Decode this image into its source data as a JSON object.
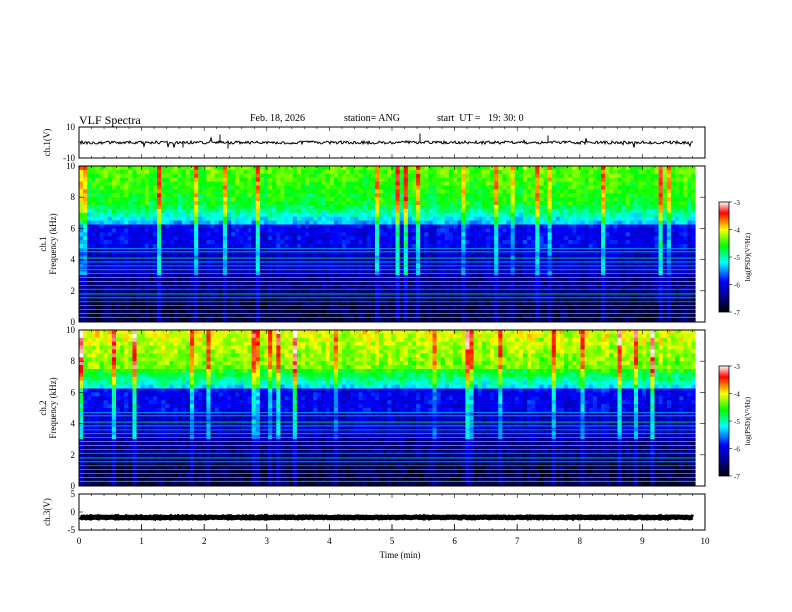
{
  "header": {
    "title": "VLF Spectra",
    "date": "Feb. 18, 2026",
    "station": "station= ANG",
    "start": "start  UT =   19: 30: 0"
  },
  "chart_data": [
    {
      "type": "line",
      "panel": "ch1-waveform",
      "ylabel": "ch.1(V)",
      "ylim": [
        -10,
        10
      ],
      "ytick_labels": [
        "10",
        "-10"
      ],
      "baseline": 0,
      "xlim": [
        0,
        10
      ]
    },
    {
      "type": "heatmap",
      "panel": "ch1-spectrogram",
      "ylabel_line1": "ch.1",
      "ylabel_line2": "Frequency (kHz)",
      "ylim": [
        0,
        10
      ],
      "yticks": [
        0,
        2,
        4,
        6,
        8,
        10
      ],
      "xlim": [
        0,
        9.85
      ],
      "colorbar": {
        "label": "log(PSD)(V²/Hz)",
        "range": [
          -7,
          -3
        ],
        "ticks": [
          "-3",
          "-4",
          "-5",
          "-6",
          "-7"
        ]
      },
      "tone_lines_khz": [
        0.3,
        0.55,
        0.8,
        1.05,
        1.3,
        1.55,
        1.8,
        2.1,
        2.35,
        2.6,
        2.85,
        3.1,
        3.35,
        3.6,
        3.85,
        4.1,
        4.5,
        4.7
      ]
    },
    {
      "type": "heatmap",
      "panel": "ch2-spectrogram",
      "ylabel_line1": "ch.2",
      "ylabel_line2": "Frequency (kHz)",
      "ylim": [
        0,
        10
      ],
      "yticks": [
        0,
        2,
        4,
        6,
        8,
        10
      ],
      "xlim": [
        0,
        9.85
      ],
      "colorbar": {
        "label": "log(PSD)(V²/Hz)",
        "range": [
          -7,
          -3
        ],
        "ticks": [
          "-3",
          "-4",
          "-5",
          "-6",
          "-7"
        ]
      },
      "tone_lines_khz": [
        0.3,
        0.55,
        0.8,
        1.05,
        1.3,
        1.55,
        1.8,
        2.1,
        2.35,
        2.6,
        2.85,
        3.1,
        3.35,
        3.6,
        3.85,
        4.1,
        4.5,
        4.7
      ]
    },
    {
      "type": "line",
      "panel": "ch3-waveform",
      "ylabel": "ch.3(V)",
      "ylim": [
        -5,
        5
      ],
      "ytick_labels": [
        "5",
        "0",
        "-5"
      ],
      "baseline": -1.5,
      "xlim": [
        0,
        10
      ]
    }
  ],
  "xaxis": {
    "label": "Time (min)",
    "ticks": [
      0,
      1,
      2,
      3,
      4,
      5,
      6,
      7,
      8,
      9,
      10
    ]
  },
  "colors": {
    "axis": "#000000",
    "colormap": [
      "#000000",
      "#00007f",
      "#0000ff",
      "#00ffff",
      "#00ff00",
      "#ffff00",
      "#ff0000",
      "#ffffff"
    ]
  }
}
